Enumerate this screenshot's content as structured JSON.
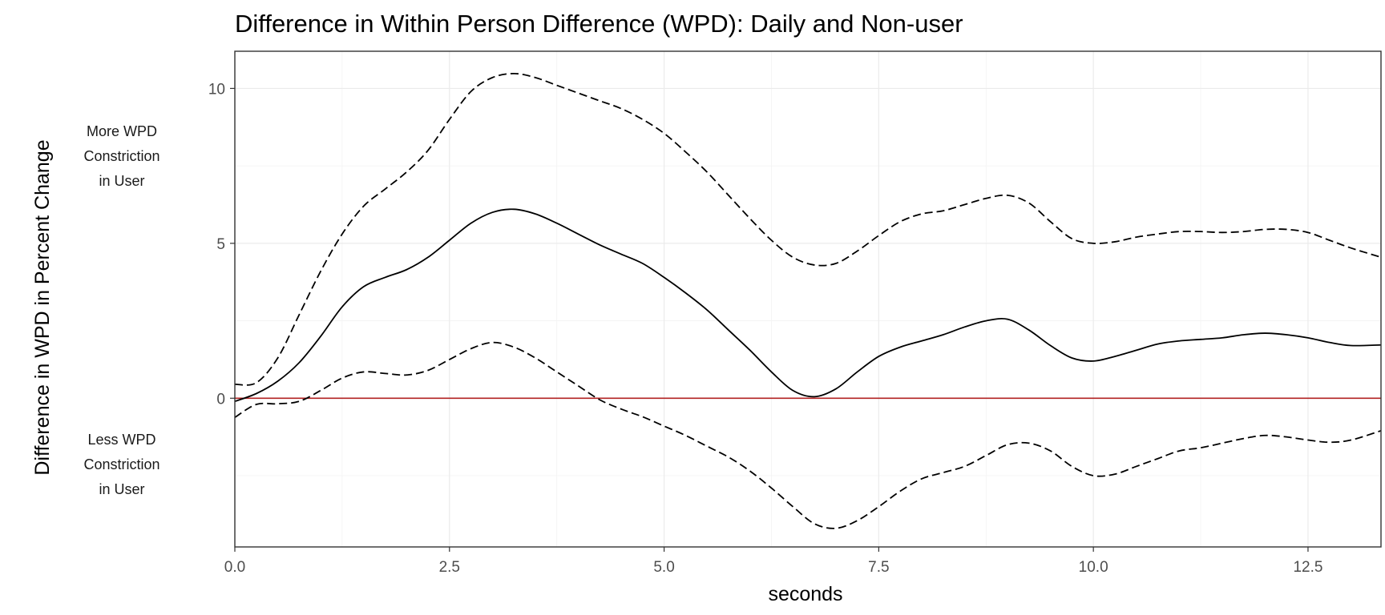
{
  "chart_data": {
    "type": "line",
    "title": "Difference in Within Person Difference (WPD): Daily and Non-user",
    "xlabel": "seconds",
    "ylabel": "Difference in WPD in Percent Change",
    "xlim": [
      0,
      13.35
    ],
    "ylim": [
      -4.8,
      11.2
    ],
    "x_ticks": [
      0,
      2.5,
      5,
      7.5,
      10,
      12.5
    ],
    "x_tick_labels": [
      "0.0",
      "2.5",
      "5.0",
      "7.5",
      "10.0",
      "12.5"
    ],
    "y_ticks": [
      0,
      5,
      10
    ],
    "y_tick_labels": [
      "0",
      "5",
      "10"
    ],
    "grid": true,
    "legend": "none",
    "annotations": {
      "upper": [
        "More WPD",
        "Constriction",
        "in User"
      ],
      "lower": [
        "Less WPD",
        "Constriction",
        "in User"
      ]
    },
    "reference_line": {
      "y": 0,
      "color": "#b22222"
    },
    "series": [
      {
        "style": "solid",
        "color": "#000000",
        "x": [
          0,
          0.25,
          0.5,
          0.75,
          1.0,
          1.25,
          1.5,
          1.75,
          2.0,
          2.25,
          2.5,
          2.75,
          3.0,
          3.25,
          3.5,
          3.75,
          4.0,
          4.25,
          4.5,
          4.75,
          5.0,
          5.25,
          5.5,
          5.75,
          6.0,
          6.25,
          6.5,
          6.75,
          7.0,
          7.25,
          7.5,
          7.75,
          8.0,
          8.25,
          8.5,
          8.75,
          9.0,
          9.25,
          9.5,
          9.75,
          10.0,
          10.25,
          10.5,
          10.75,
          11.0,
          11.25,
          11.5,
          11.75,
          12.0,
          12.25,
          12.5,
          12.75,
          13.0,
          13.35
        ],
        "values": [
          -0.1,
          0.15,
          0.55,
          1.15,
          2.0,
          2.95,
          3.6,
          3.9,
          4.15,
          4.55,
          5.1,
          5.65,
          6.0,
          6.1,
          5.95,
          5.65,
          5.3,
          4.95,
          4.65,
          4.35,
          3.9,
          3.4,
          2.85,
          2.2,
          1.55,
          0.85,
          0.25,
          0.05,
          0.3,
          0.85,
          1.35,
          1.65,
          1.85,
          2.05,
          2.3,
          2.5,
          2.55,
          2.2,
          1.7,
          1.3,
          1.2,
          1.35,
          1.55,
          1.75,
          1.85,
          1.9,
          1.95,
          2.05,
          2.1,
          2.05,
          1.95,
          1.8,
          1.7,
          1.72
        ]
      },
      {
        "style": "dashed",
        "color": "#000000",
        "x": [
          0,
          0.25,
          0.5,
          0.75,
          1.0,
          1.25,
          1.5,
          1.75,
          2.0,
          2.25,
          2.5,
          2.75,
          3.0,
          3.25,
          3.5,
          3.75,
          4.0,
          4.25,
          4.5,
          4.75,
          5.0,
          5.25,
          5.5,
          5.75,
          6.0,
          6.25,
          6.5,
          6.75,
          7.0,
          7.25,
          7.5,
          7.75,
          8.0,
          8.25,
          8.5,
          8.75,
          9.0,
          9.25,
          9.5,
          9.75,
          10.0,
          10.25,
          10.5,
          10.75,
          11.0,
          11.25,
          11.5,
          11.75,
          12.0,
          12.25,
          12.5,
          12.75,
          13.0,
          13.35
        ],
        "values": [
          0.45,
          0.5,
          1.3,
          2.7,
          4.1,
          5.3,
          6.2,
          6.75,
          7.3,
          8.0,
          9.0,
          9.9,
          10.35,
          10.48,
          10.35,
          10.1,
          9.85,
          9.6,
          9.35,
          9.0,
          8.55,
          7.95,
          7.3,
          6.55,
          5.8,
          5.1,
          4.55,
          4.3,
          4.35,
          4.75,
          5.25,
          5.7,
          5.95,
          6.05,
          6.25,
          6.45,
          6.55,
          6.3,
          5.7,
          5.15,
          5.0,
          5.05,
          5.2,
          5.3,
          5.38,
          5.38,
          5.35,
          5.38,
          5.45,
          5.45,
          5.35,
          5.1,
          4.85,
          4.55
        ]
      },
      {
        "style": "dashed",
        "color": "#000000",
        "x": [
          0,
          0.25,
          0.5,
          0.75,
          1.0,
          1.25,
          1.5,
          1.75,
          2.0,
          2.25,
          2.5,
          2.75,
          3.0,
          3.25,
          3.5,
          3.75,
          4.0,
          4.25,
          4.5,
          4.75,
          5.0,
          5.25,
          5.5,
          5.75,
          6.0,
          6.25,
          6.5,
          6.75,
          7.0,
          7.25,
          7.5,
          7.75,
          8.0,
          8.25,
          8.5,
          8.75,
          9.0,
          9.25,
          9.5,
          9.75,
          10.0,
          10.25,
          10.5,
          10.75,
          11.0,
          11.25,
          11.5,
          11.75,
          12.0,
          12.25,
          12.5,
          12.75,
          13.0,
          13.35
        ],
        "values": [
          -0.62,
          -0.2,
          -0.18,
          -0.1,
          0.25,
          0.65,
          0.85,
          0.8,
          0.75,
          0.9,
          1.25,
          1.6,
          1.8,
          1.65,
          1.3,
          0.85,
          0.4,
          -0.05,
          -0.35,
          -0.6,
          -0.9,
          -1.2,
          -1.55,
          -1.9,
          -2.35,
          -2.9,
          -3.5,
          -4.05,
          -4.2,
          -3.95,
          -3.5,
          -3.0,
          -2.6,
          -2.4,
          -2.2,
          -1.85,
          -1.5,
          -1.45,
          -1.7,
          -2.2,
          -2.5,
          -2.45,
          -2.2,
          -1.95,
          -1.7,
          -1.6,
          -1.45,
          -1.3,
          -1.2,
          -1.25,
          -1.35,
          -1.42,
          -1.35,
          -1.05
        ]
      }
    ]
  }
}
